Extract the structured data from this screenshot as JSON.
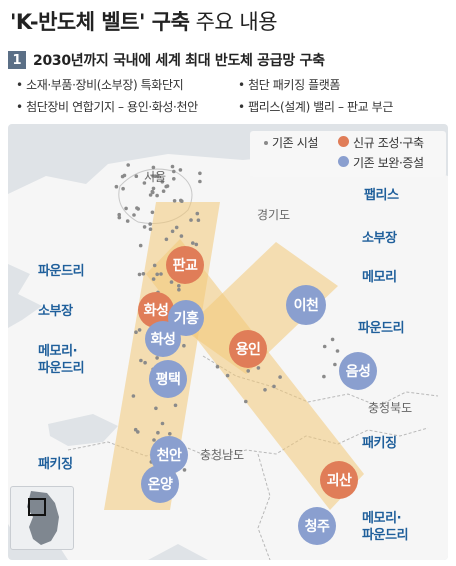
{
  "title": {
    "bold": "'K-반도체 벨트' 구축",
    "rest": " 주요 내용"
  },
  "section": {
    "number": "1",
    "text": "2030년까지 국내에 세계 최대 반도체 공급망 구축"
  },
  "bullets": [
    "• 소재·부품·장비(소부장) 특화단지",
    "• 첨단 패키징 플랫폼",
    "• 첨단장비 연합기지 – 용인·화성·천안",
    "• 팹리스(설계) 밸리 – 판교 부근"
  ],
  "legend": {
    "existing_facility": "기존 시설",
    "new": "신규 조성·구축",
    "existing_upgrade": "기존 보완·증설"
  },
  "colors": {
    "new": "#e07d58",
    "existing": "#8a9fcf",
    "belt": "#f3c879",
    "label": "#1f5f9b"
  },
  "regions": {
    "seoul": "서울",
    "gyeonggi": "경기도",
    "chungbuk": "충청북도",
    "chungnam": "충청남도"
  },
  "cities": {
    "pangyo": "판교",
    "hwaseong_new": "화성",
    "giheung": "기흥",
    "hwaseong": "화성",
    "yongin": "용인",
    "icheon": "이천",
    "pyeongtaek": "평택",
    "eumseong": "음성",
    "cheonan": "천안",
    "onyang": "온양",
    "goesan": "괴산",
    "cheongju": "청주"
  },
  "labels": {
    "fabless": "팹리스",
    "sobujang_right": "소부장",
    "memory_right": "메모리",
    "foundry_right": "파운드리",
    "packaging_right": "패키징",
    "memory_foundry_right_1": "메모리·",
    "memory_foundry_right_2": "파운드리",
    "foundry_left": "파운드리",
    "sobujang_left": "소부장",
    "memory_foundry_left_1": "메모리·",
    "memory_foundry_left_2": "파운드리",
    "packaging_left": "패키징"
  },
  "inset": {
    "icon": "korea-locator-icon"
  }
}
